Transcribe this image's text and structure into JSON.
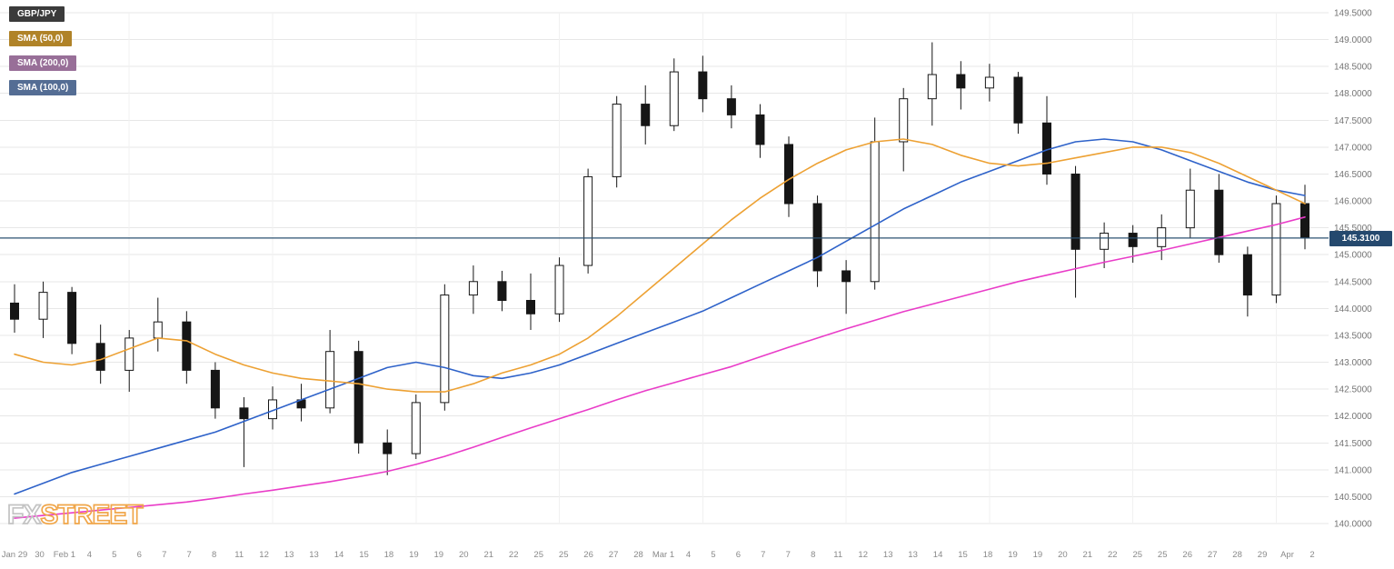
{
  "legend": {
    "items": [
      {
        "label": "GBP/JPY",
        "bg": "#3b3b3b"
      },
      {
        "label": "SMA (50,0)",
        "bg": "#b08328",
        "line_color": "#eda133"
      },
      {
        "label": "SMA (200,0)",
        "bg": "#986f98",
        "line_color": "#e93cc8"
      },
      {
        "label": "SMA (100,0)",
        "bg": "#546d94",
        "line_color": "#2e62c9"
      }
    ]
  },
  "price": {
    "value": "145.3100",
    "line_color": "#2b5070",
    "box_bg": "#25496e"
  },
  "watermark": {
    "fx": "FX",
    "street": "STREET"
  },
  "colors": {
    "grid": "#e7e7e7",
    "week_grid": "#f1f1f1",
    "candle_up_fill": "#ffffff",
    "candle_down_fill": "#161616",
    "candle_outline": "#161616",
    "axis_text": "#777777"
  },
  "chart_data": {
    "type": "candlestick",
    "symbol": "GBP/JPY",
    "ylim": [
      140.0,
      149.5
    ],
    "grid": "horizontal light gray, faint weekly vertical",
    "legend_position": "top-left",
    "last_price": 145.31,
    "y_ticks": [
      "149.5000",
      "149.0000",
      "148.5000",
      "148.0000",
      "147.5000",
      "147.0000",
      "146.5000",
      "146.0000",
      "145.5000",
      "145.0000",
      "144.5000",
      "144.0000",
      "143.5000",
      "143.0000",
      "142.5000",
      "142.0000",
      "141.5000",
      "141.0000",
      "140.5000",
      "140.0000"
    ],
    "x_tick_labels": [
      "Jan 29",
      "30",
      "Feb 1",
      "4",
      "5",
      "6",
      "7",
      "7",
      "8",
      "11",
      "12",
      "13",
      "13",
      "14",
      "15",
      "18",
      "19",
      "19",
      "20",
      "21",
      "22",
      "25",
      "25",
      "26",
      "27",
      "28",
      "Mar 1",
      "4",
      "5",
      "6",
      "7",
      "7",
      "8",
      "11",
      "12",
      "13",
      "13",
      "14",
      "15",
      "18",
      "19",
      "19",
      "20",
      "21",
      "22",
      "25",
      "25",
      "26",
      "27",
      "28",
      "29",
      "Apr",
      "2"
    ],
    "week_start_indices": [
      4,
      9,
      14,
      19,
      24,
      29,
      34,
      39,
      44
    ],
    "candles": [
      {
        "d": "Jan 29",
        "o": 144.1,
        "h": 144.45,
        "l": 143.55,
        "c": 143.8
      },
      {
        "d": "30",
        "o": 143.8,
        "h": 144.5,
        "l": 143.45,
        "c": 144.3
      },
      {
        "d": "31",
        "o": 144.3,
        "h": 144.4,
        "l": 143.15,
        "c": 143.35
      },
      {
        "d": "Feb 1",
        "o": 143.35,
        "h": 143.7,
        "l": 142.6,
        "c": 142.85
      },
      {
        "d": "4",
        "o": 142.85,
        "h": 143.6,
        "l": 142.45,
        "c": 143.45
      },
      {
        "d": "5",
        "o": 143.45,
        "h": 144.2,
        "l": 143.2,
        "c": 143.75
      },
      {
        "d": "6",
        "o": 143.75,
        "h": 143.95,
        "l": 142.6,
        "c": 142.85
      },
      {
        "d": "7",
        "o": 142.85,
        "h": 143.0,
        "l": 141.95,
        "c": 142.15
      },
      {
        "d": "8",
        "o": 142.15,
        "h": 142.35,
        "l": 141.05,
        "c": 141.95
      },
      {
        "d": "11",
        "o": 141.95,
        "h": 142.55,
        "l": 141.75,
        "c": 142.3
      },
      {
        "d": "12",
        "o": 142.3,
        "h": 142.6,
        "l": 141.9,
        "c": 142.15
      },
      {
        "d": "13",
        "o": 142.15,
        "h": 143.6,
        "l": 142.05,
        "c": 143.2
      },
      {
        "d": "14",
        "o": 143.2,
        "h": 143.4,
        "l": 141.3,
        "c": 141.5
      },
      {
        "d": "15",
        "o": 141.5,
        "h": 141.75,
        "l": 140.9,
        "c": 141.3
      },
      {
        "d": "18",
        "o": 141.3,
        "h": 142.4,
        "l": 141.2,
        "c": 142.25
      },
      {
        "d": "19",
        "o": 142.25,
        "h": 144.45,
        "l": 142.1,
        "c": 144.25
      },
      {
        "d": "20",
        "o": 144.25,
        "h": 144.8,
        "l": 143.9,
        "c": 144.5
      },
      {
        "d": "21",
        "o": 144.5,
        "h": 144.7,
        "l": 143.95,
        "c": 144.15
      },
      {
        "d": "22",
        "o": 144.15,
        "h": 144.65,
        "l": 143.6,
        "c": 143.9
      },
      {
        "d": "25",
        "o": 143.9,
        "h": 144.95,
        "l": 143.75,
        "c": 144.8
      },
      {
        "d": "26",
        "o": 144.8,
        "h": 146.6,
        "l": 144.65,
        "c": 146.45
      },
      {
        "d": "27",
        "o": 146.45,
        "h": 147.95,
        "l": 146.25,
        "c": 147.8
      },
      {
        "d": "28",
        "o": 147.8,
        "h": 148.15,
        "l": 147.05,
        "c": 147.4
      },
      {
        "d": "Mar 1",
        "o": 147.4,
        "h": 148.65,
        "l": 147.3,
        "c": 148.4
      },
      {
        "d": "4",
        "o": 148.4,
        "h": 148.7,
        "l": 147.65,
        "c": 147.9
      },
      {
        "d": "5",
        "o": 147.9,
        "h": 148.15,
        "l": 147.35,
        "c": 147.6
      },
      {
        "d": "6",
        "o": 147.6,
        "h": 147.8,
        "l": 146.8,
        "c": 147.05
      },
      {
        "d": "7",
        "o": 147.05,
        "h": 147.2,
        "l": 145.7,
        "c": 145.95
      },
      {
        "d": "8",
        "o": 145.95,
        "h": 146.1,
        "l": 144.4,
        "c": 144.7
      },
      {
        "d": "11",
        "o": 144.7,
        "h": 144.9,
        "l": 143.9,
        "c": 144.5
      },
      {
        "d": "12",
        "o": 144.5,
        "h": 147.55,
        "l": 144.35,
        "c": 147.1
      },
      {
        "d": "13",
        "o": 147.1,
        "h": 148.1,
        "l": 146.55,
        "c": 147.9
      },
      {
        "d": "14",
        "o": 147.9,
        "h": 148.95,
        "l": 147.4,
        "c": 148.35
      },
      {
        "d": "15",
        "o": 148.35,
        "h": 148.6,
        "l": 147.7,
        "c": 148.1
      },
      {
        "d": "18",
        "o": 148.1,
        "h": 148.55,
        "l": 147.85,
        "c": 148.3
      },
      {
        "d": "19",
        "o": 148.3,
        "h": 148.4,
        "l": 147.25,
        "c": 147.45
      },
      {
        "d": "20",
        "o": 147.45,
        "h": 147.95,
        "l": 146.3,
        "c": 146.5
      },
      {
        "d": "21",
        "o": 146.5,
        "h": 146.65,
        "l": 144.2,
        "c": 145.1
      },
      {
        "d": "22",
        "o": 145.1,
        "h": 145.6,
        "l": 144.75,
        "c": 145.4
      },
      {
        "d": "25",
        "o": 145.4,
        "h": 145.55,
        "l": 144.85,
        "c": 145.15
      },
      {
        "d": "26",
        "o": 145.15,
        "h": 145.75,
        "l": 144.9,
        "c": 145.5
      },
      {
        "d": "27",
        "o": 145.5,
        "h": 146.6,
        "l": 145.3,
        "c": 146.2
      },
      {
        "d": "28",
        "o": 146.2,
        "h": 146.5,
        "l": 144.85,
        "c": 145.0
      },
      {
        "d": "29",
        "o": 145.0,
        "h": 145.15,
        "l": 143.85,
        "c": 144.25
      },
      {
        "d": "Apr 1",
        "o": 144.25,
        "h": 146.1,
        "l": 144.1,
        "c": 145.95
      },
      {
        "d": "2",
        "o": 145.95,
        "h": 146.3,
        "l": 145.1,
        "c": 145.31
      }
    ],
    "series": [
      {
        "name": "SMA (200,0)",
        "color": "#e93cc8",
        "values": [
          140.1,
          140.15,
          140.2,
          140.25,
          140.3,
          140.35,
          140.4,
          140.47,
          140.55,
          140.62,
          140.7,
          140.78,
          140.87,
          140.97,
          141.1,
          141.25,
          141.42,
          141.6,
          141.78,
          141.95,
          142.12,
          142.3,
          142.47,
          142.62,
          142.77,
          142.92,
          143.1,
          143.28,
          143.45,
          143.62,
          143.78,
          143.94,
          144.08,
          144.22,
          144.36,
          144.5,
          144.62,
          144.74,
          144.86,
          144.97,
          145.08,
          145.2,
          145.32,
          145.44,
          145.56,
          145.7
        ]
      },
      {
        "name": "SMA (100,0)",
        "color": "#2e62c9",
        "values": [
          140.55,
          140.75,
          140.95,
          141.1,
          141.25,
          141.4,
          141.55,
          141.7,
          141.9,
          142.1,
          142.3,
          142.5,
          142.7,
          142.9,
          143.0,
          142.9,
          142.75,
          142.7,
          142.8,
          142.95,
          143.15,
          143.35,
          143.55,
          143.75,
          143.95,
          144.2,
          144.45,
          144.7,
          144.95,
          145.25,
          145.55,
          145.85,
          146.1,
          146.35,
          146.55,
          146.75,
          146.95,
          147.1,
          147.15,
          147.1,
          146.95,
          146.75,
          146.55,
          146.35,
          146.2,
          146.1
        ]
      },
      {
        "name": "SMA (50,0)",
        "color": "#eda133",
        "values": [
          143.15,
          143.0,
          142.95,
          143.05,
          143.25,
          143.45,
          143.4,
          143.15,
          142.95,
          142.8,
          142.7,
          142.65,
          142.6,
          142.5,
          142.45,
          142.45,
          142.6,
          142.8,
          142.95,
          143.15,
          143.45,
          143.85,
          144.3,
          144.75,
          145.2,
          145.65,
          146.05,
          146.4,
          146.7,
          146.95,
          147.1,
          147.15,
          147.05,
          146.85,
          146.7,
          146.65,
          146.7,
          146.8,
          146.9,
          147.0,
          147.0,
          146.9,
          146.7,
          146.45,
          146.2,
          145.95
        ]
      }
    ]
  }
}
